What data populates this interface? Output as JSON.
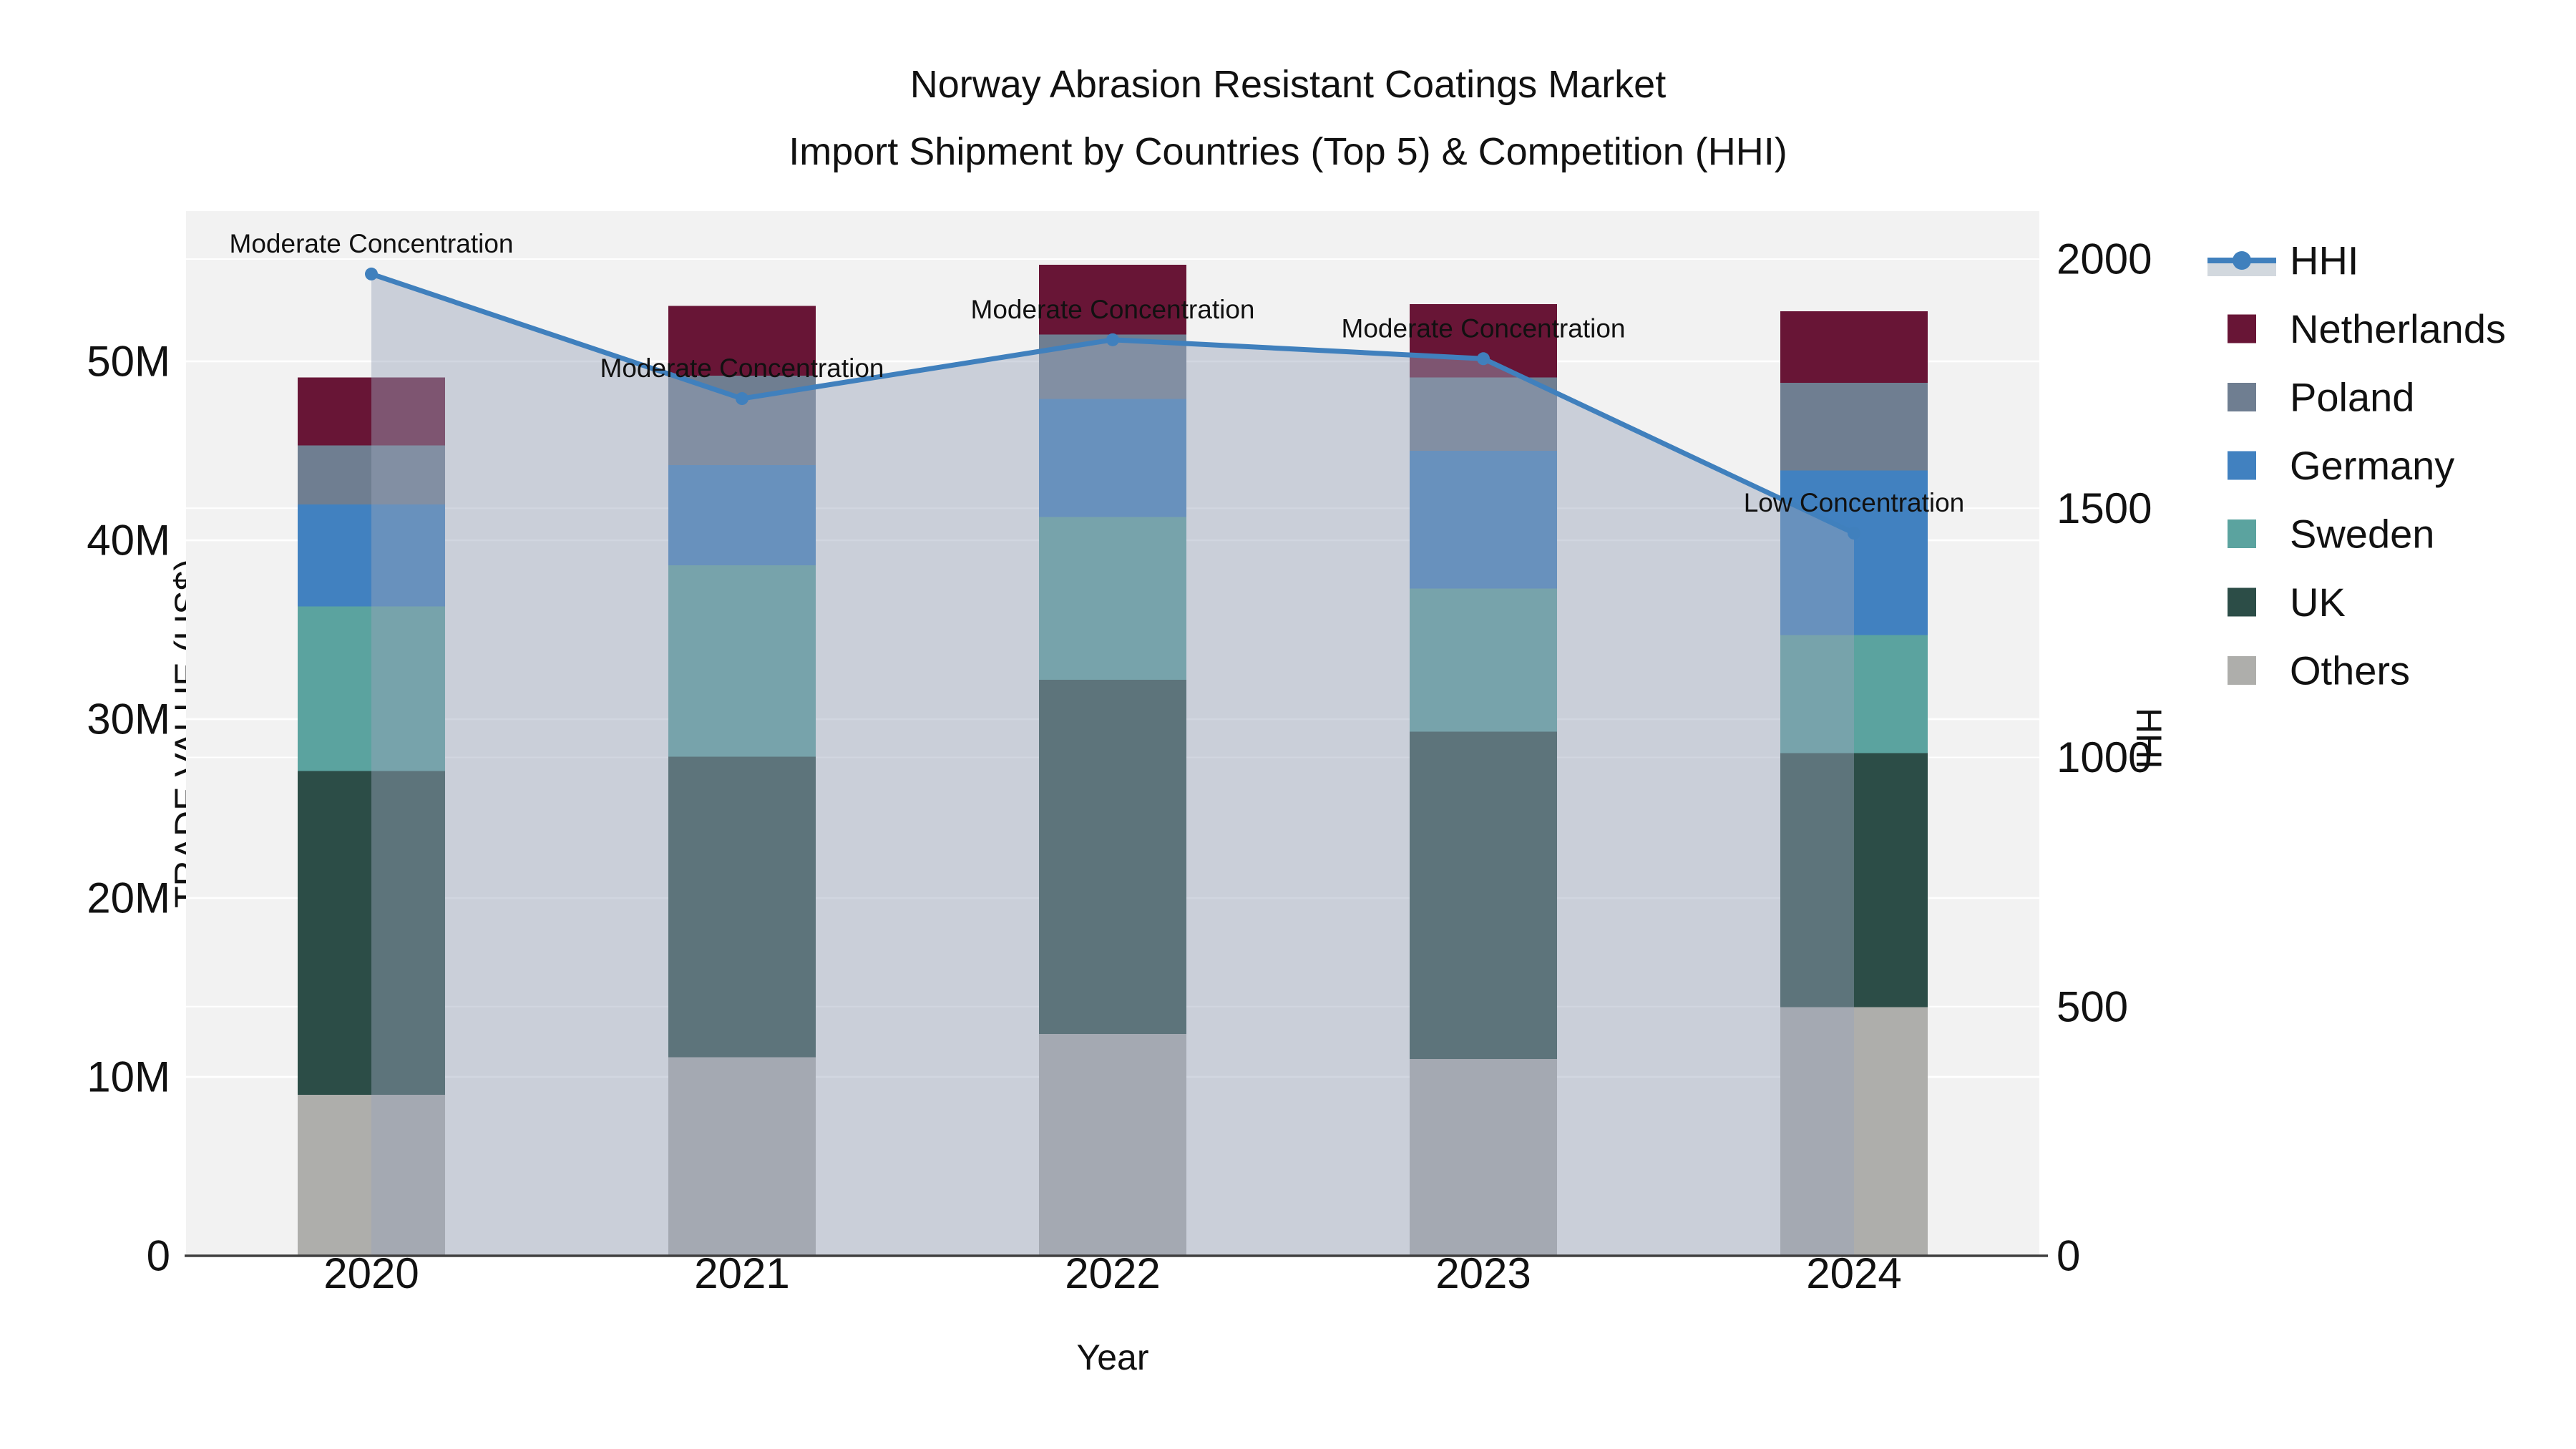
{
  "title": {
    "line1": "Norway Abrasion Resistant Coatings Market",
    "line2": "Import Shipment by Countries (Top 5) & Competition (HHI)"
  },
  "axes": {
    "x_title": "Year",
    "y_left_title": "TRADE VALUE (US$)",
    "y_right_title": "HHI",
    "y_left_ticks": [
      {
        "label": "0",
        "value": 0
      },
      {
        "label": "10M",
        "value": 10
      },
      {
        "label": "20M",
        "value": 20
      },
      {
        "label": "30M",
        "value": 30
      },
      {
        "label": "40M",
        "value": 40
      },
      {
        "label": "50M",
        "value": 50
      }
    ],
    "y_right_ticks": [
      {
        "label": "0",
        "value": 0
      },
      {
        "label": "500",
        "value": 500
      },
      {
        "label": "1000",
        "value": 1000
      },
      {
        "label": "1500",
        "value": 1500
      },
      {
        "label": "2000",
        "value": 2000
      }
    ]
  },
  "colors": {
    "plot_background": "#f2f2f2",
    "gridline": "#ffffff",
    "axis_line": "#3f3f3f",
    "text": "#111111",
    "hhi_line": "#4080bd",
    "hhi_fill": "rgba(152,164,186,0.45)",
    "netherlands": "#681536",
    "poland": "#6f7e91",
    "germany": "#4181c0",
    "sweden": "#5ba39f",
    "uk": "#2c4d47",
    "others": "#aeaeab"
  },
  "legend": {
    "items": [
      {
        "label": "HHI",
        "type": "line",
        "color": "#4080bd"
      },
      {
        "label": "Netherlands",
        "type": "swatch",
        "color": "#681536"
      },
      {
        "label": "Poland",
        "type": "swatch",
        "color": "#6f7e91"
      },
      {
        "label": "Germany",
        "type": "swatch",
        "color": "#4181c0"
      },
      {
        "label": "Sweden",
        "type": "swatch",
        "color": "#5ba39f"
      },
      {
        "label": "UK",
        "type": "swatch",
        "color": "#2c4d47"
      },
      {
        "label": "Others",
        "type": "swatch",
        "color": "#aeaeab"
      }
    ]
  },
  "chart_data": {
    "type": "bar",
    "subtype": "stacked-bars-with-line-overlay",
    "categories": [
      "2020",
      "2021",
      "2022",
      "2023",
      "2024"
    ],
    "stack_order_bottom_to_top": [
      "Others",
      "UK",
      "Sweden",
      "Germany",
      "Poland",
      "Netherlands"
    ],
    "series": [
      {
        "name": "Netherlands",
        "axis": "left",
        "unit": "M US$",
        "color": "#681536",
        "values": [
          3.8,
          3.9,
          3.9,
          4.1,
          4.0
        ]
      },
      {
        "name": "Poland",
        "axis": "left",
        "unit": "M US$",
        "color": "#6f7e91",
        "values": [
          3.3,
          5.0,
          3.6,
          4.1,
          4.9
        ]
      },
      {
        "name": "Germany",
        "axis": "left",
        "unit": "M US$",
        "color": "#4181c0",
        "values": [
          5.7,
          5.6,
          6.6,
          7.7,
          9.2
        ]
      },
      {
        "name": "Sweden",
        "axis": "left",
        "unit": "M US$",
        "color": "#5ba39f",
        "values": [
          9.2,
          10.7,
          9.1,
          8.0,
          6.6
        ]
      },
      {
        "name": "UK",
        "axis": "left",
        "unit": "M US$",
        "color": "#2c4d47",
        "values": [
          18.1,
          16.8,
          19.8,
          18.3,
          14.2
        ]
      },
      {
        "name": "Others",
        "axis": "left",
        "unit": "M US$",
        "color": "#aeaeab",
        "values": [
          9.0,
          11.1,
          12.4,
          11.0,
          13.9
        ]
      }
    ],
    "stack_totals": [
      49.1,
      53.1,
      55.4,
      53.2,
      52.8
    ],
    "line_series": {
      "name": "HHI",
      "axis": "right",
      "color": "#4080bd",
      "fill": "tozeroy",
      "values": [
        1970,
        1720,
        1838,
        1800,
        1450
      ]
    },
    "annotations": [
      {
        "category": "2020",
        "text": "Moderate Concentration"
      },
      {
        "category": "2021",
        "text": "Moderate Concentration"
      },
      {
        "category": "2022",
        "text": "Moderate Concentration"
      },
      {
        "category": "2023",
        "text": "Moderate Concentration"
      },
      {
        "category": "2024",
        "text": "Low Concentration"
      }
    ],
    "xlabel": "Year",
    "ylabel_left": "TRADE VALUE (US$)",
    "ylabel_right": "HHI",
    "ylim_left": [
      0,
      58.4
    ],
    "ylim_right": [
      0,
      2096
    ],
    "grid": true,
    "legend_position": "right"
  }
}
